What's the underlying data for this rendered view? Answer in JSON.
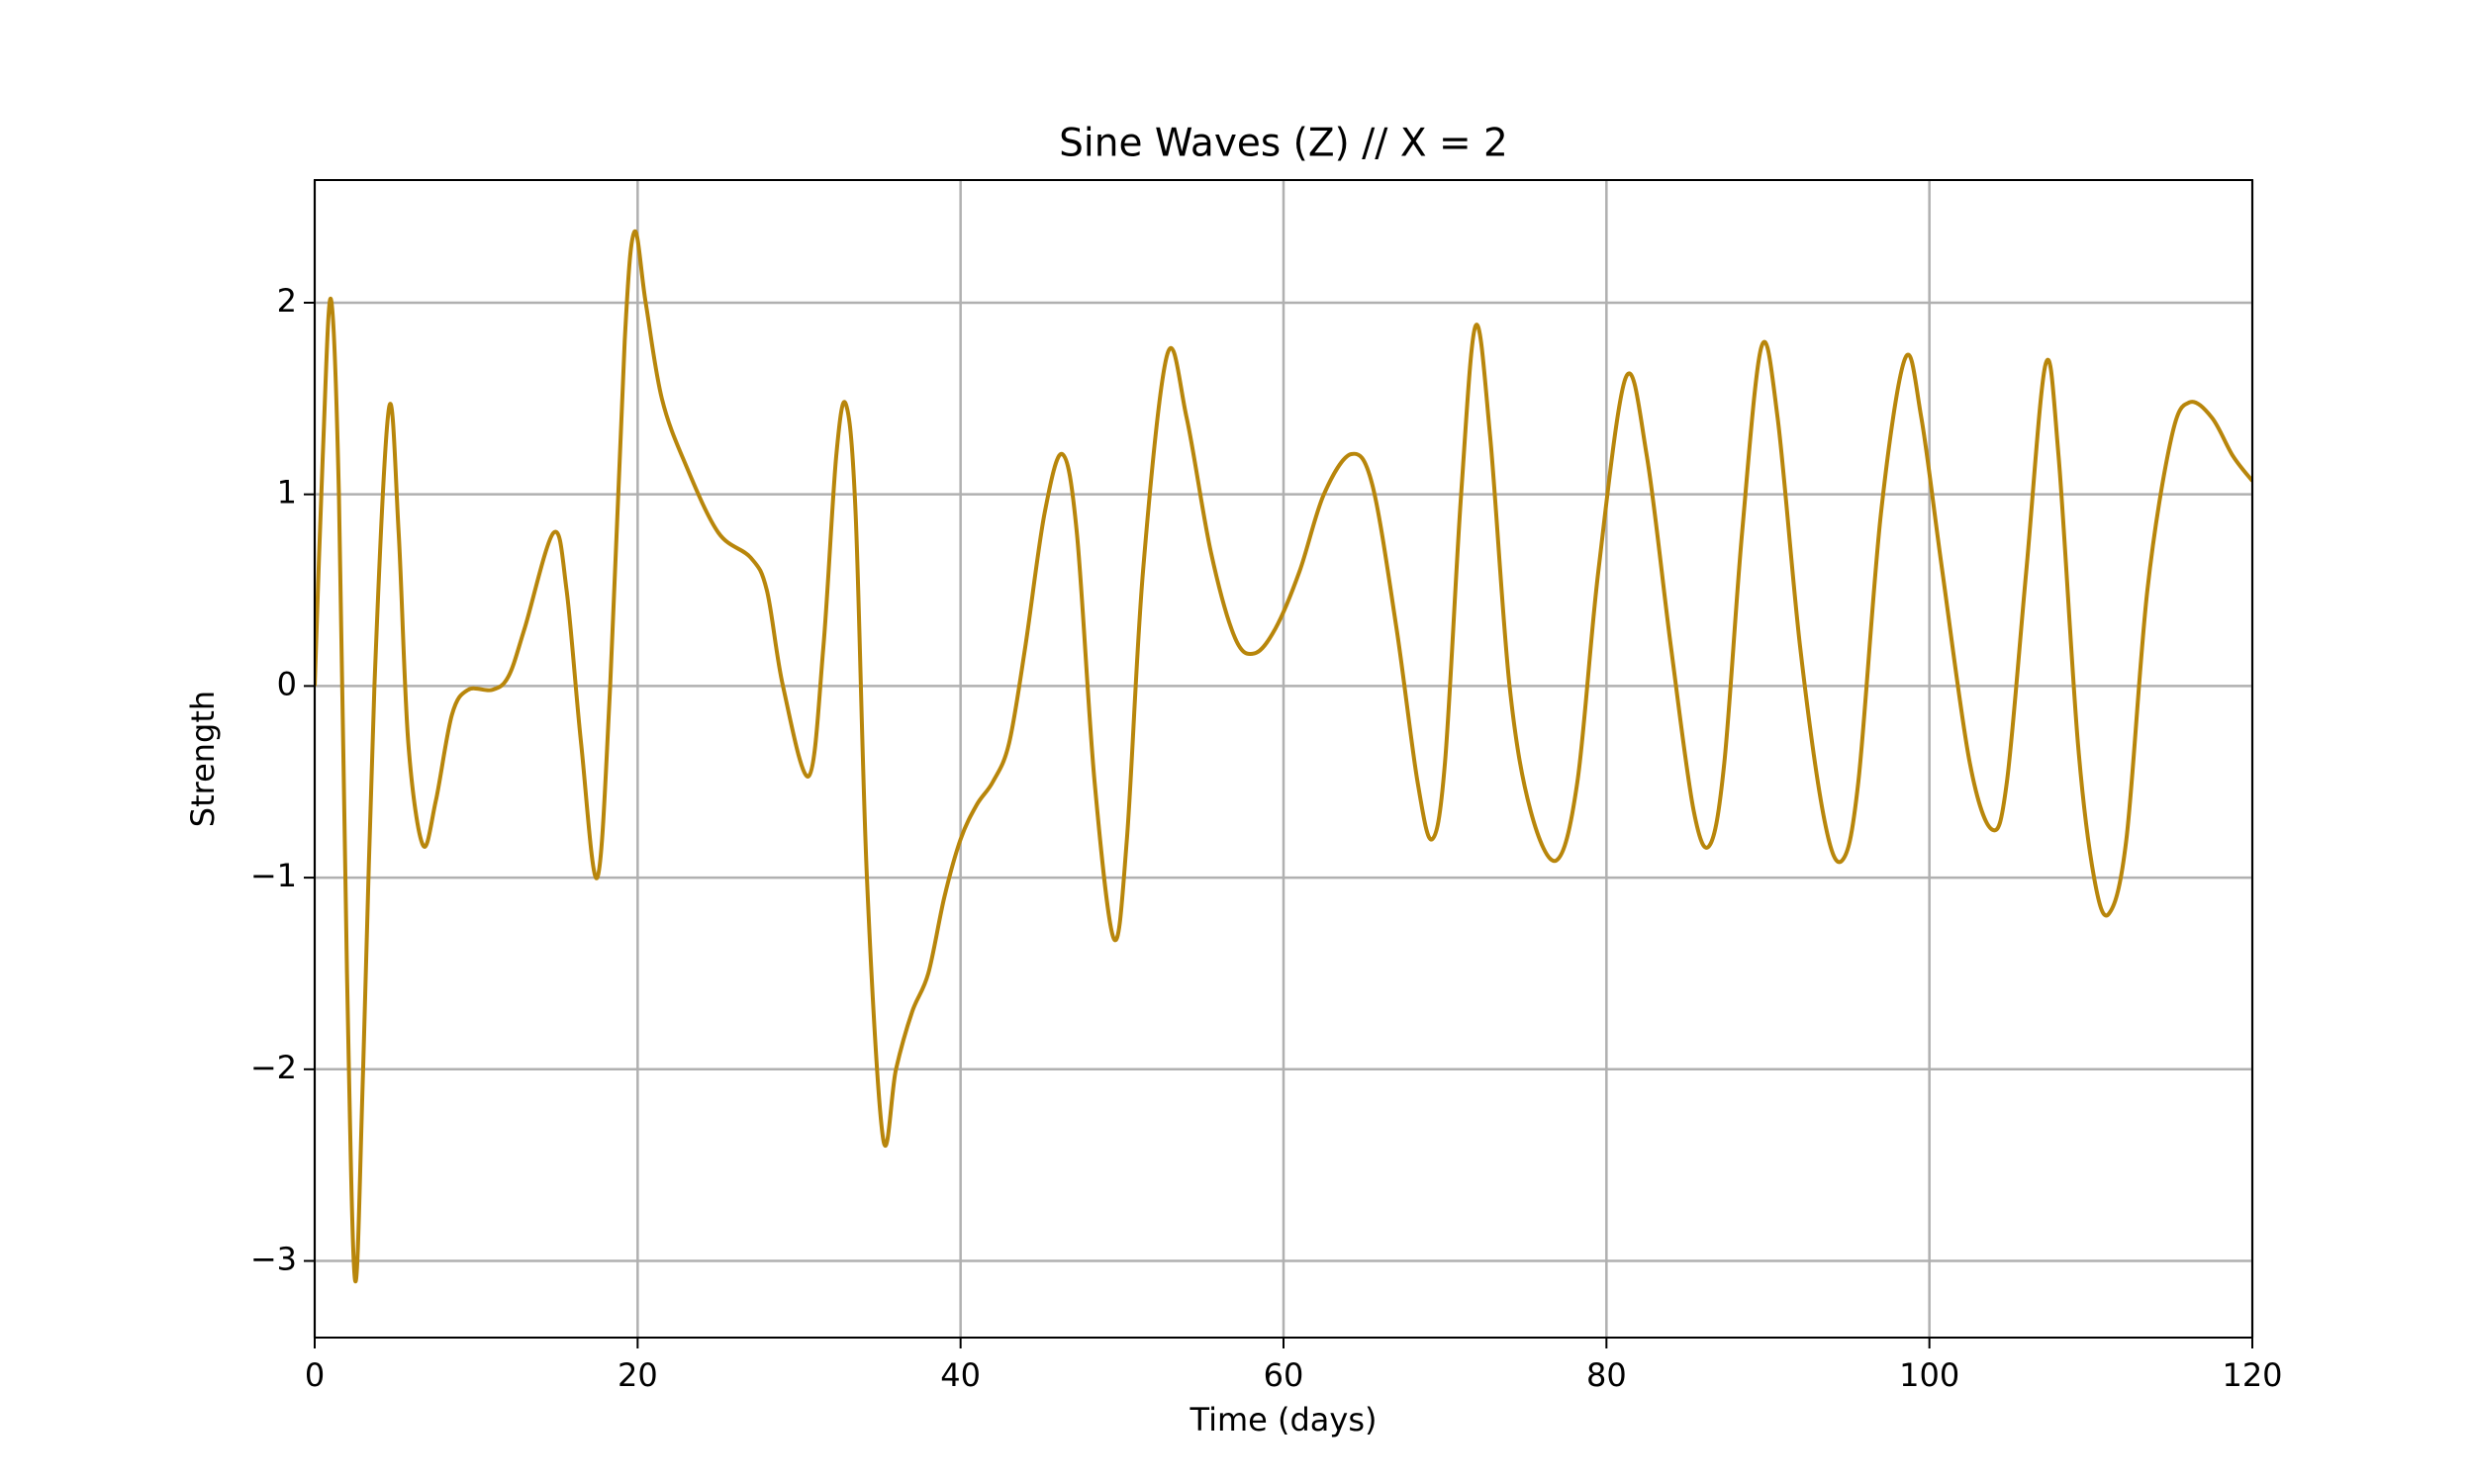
{
  "chart_data": {
    "type": "line",
    "title": "Sine Waves (Z) // X = 2",
    "xlabel": "Time (days)",
    "ylabel": "Strength",
    "color": "#b8860b",
    "grid": true,
    "xlim": [
      0,
      120
    ],
    "xticks": [
      0,
      20,
      40,
      60,
      80,
      100,
      120
    ],
    "ylim": [
      -3.4,
      2.64
    ],
    "yticks": [
      {
        "value": -3,
        "label": "−3"
      },
      {
        "value": -2,
        "label": "−2"
      },
      {
        "value": -1,
        "label": "−1"
      },
      0,
      1,
      2
    ],
    "x": [
      0,
      0.5,
      1,
      1.5,
      2.0,
      2.5,
      3.0,
      3.7,
      4.6,
      5.2,
      5.8,
      6.7,
      7.5,
      8.5,
      9.5,
      11,
      12,
      13,
      14.8,
      15.6,
      16.5,
      17.5,
      18.3,
      19.2,
      19.8,
      20.5,
      21.5,
      23,
      25,
      27,
      28,
      29,
      30.6,
      31.5,
      32.3,
      32.9,
      33.5,
      34.2,
      35.2,
      36,
      37,
      38,
      39,
      40,
      41,
      42,
      43,
      44,
      45.2,
      46.3,
      47.2,
      48.3,
      49.5,
      50.3,
      51.3,
      52.8,
      54,
      55.5,
      57,
      58.2,
      59.5,
      61,
      62.5,
      64.2,
      65.5,
      67,
      68.3,
      69.2,
      70,
      71,
      71.9,
      72.8,
      74,
      75.3,
      76.9,
      78.2,
      79.5,
      81.2,
      82.5,
      84,
      85.4,
      86.4,
      87.3,
      88.4,
      89.6,
      90.6,
      92,
      93.5,
      94.6,
      95.6,
      97,
      98.5,
      99.5,
      100.8,
      102.5,
      103.9,
      104.8,
      106,
      107.2,
      108,
      109.2,
      110.2,
      111.1,
      112.2,
      113.5,
      115,
      116.1,
      117.5,
      118.8,
      120
    ],
    "values": [
      0,
      1.2,
      2.02,
      1.0,
      -1.5,
      -3.1,
      -2.0,
      0,
      1.45,
      0.8,
      -0.3,
      -0.83,
      -0.6,
      -0.15,
      -0.02,
      -0.02,
      0.05,
      0.3,
      0.8,
      0.5,
      -0.3,
      -1.0,
      0,
      1.8,
      2.37,
      2.0,
      1.5,
      1.15,
      0.8,
      0.67,
      0.5,
      0.0,
      -0.47,
      0.2,
      1.2,
      1.47,
      0.9,
      -1.0,
      -2.36,
      -2.0,
      -1.7,
      -1.5,
      -1.1,
      -0.8,
      -0.62,
      -0.5,
      -0.3,
      0.2,
      0.9,
      1.21,
      0.8,
      -0.5,
      -1.32,
      -0.8,
      0.6,
      1.73,
      1.4,
      0.7,
      0.25,
      0.17,
      0.3,
      0.6,
      1.0,
      1.21,
      1.05,
      0.3,
      -0.5,
      -0.8,
      -0.4,
      1.0,
      1.88,
      1.3,
      0.0,
      -0.65,
      -0.91,
      -0.5,
      0.6,
      1.61,
      1.2,
      0.2,
      -0.65,
      -0.83,
      -0.4,
      0.8,
      1.77,
      1.4,
      0.2,
      -0.7,
      -0.91,
      -0.5,
      0.9,
      1.71,
      1.4,
      0.6,
      -0.4,
      -0.75,
      -0.5,
      0.6,
      1.68,
      1.2,
      -0.3,
      -1.0,
      -1.19,
      -0.8,
      0.5,
      1.3,
      1.48,
      1.4,
      1.2,
      1.07
    ]
  }
}
